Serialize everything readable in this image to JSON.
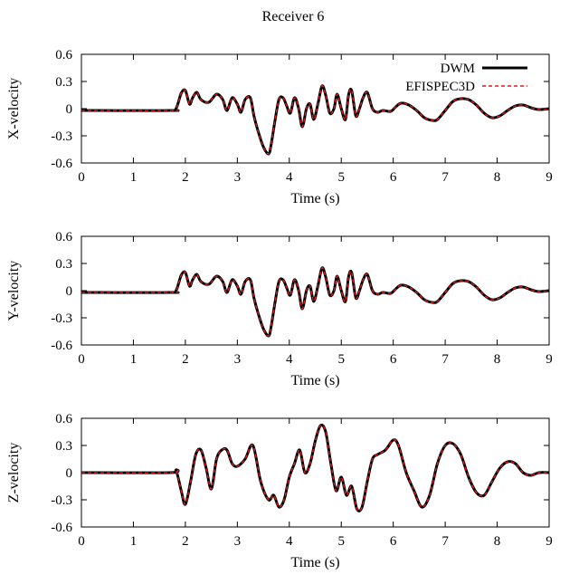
{
  "figure": {
    "title": "Receiver 6"
  },
  "legend": [
    {
      "name": "DWM",
      "color": "#000000",
      "style": "solid"
    },
    {
      "name": "EFISPEC3D",
      "color": "#e31a1c",
      "style": "dashed"
    }
  ],
  "chart_data": [
    {
      "type": "line",
      "title": "",
      "xlabel": "Time (s)",
      "ylabel": "X-velocity",
      "xlim": [
        0,
        9
      ],
      "ylim": [
        -0.6,
        0.6
      ],
      "xticks": [
        "0",
        "1",
        "2",
        "3",
        "4",
        "5",
        "6",
        "7",
        "8",
        "9"
      ],
      "yticks": [
        "0.6",
        "0.3",
        "0",
        "-0.3",
        "-0.6"
      ],
      "legend_position": "top-right",
      "series": [
        {
          "name": "DWM",
          "color": "#000000",
          "x": [
            0,
            1.7,
            1.82,
            1.92,
            2.0,
            2.08,
            2.14,
            2.22,
            2.3,
            2.45,
            2.6,
            2.72,
            2.8,
            2.9,
            3.0,
            3.07,
            3.15,
            3.25,
            3.32,
            3.4,
            3.5,
            3.6,
            3.65,
            3.72,
            3.8,
            3.88,
            3.95,
            4.02,
            4.1,
            4.18,
            4.25,
            4.33,
            4.4,
            4.47,
            4.55,
            4.63,
            4.7,
            4.78,
            4.86,
            4.92,
            5.0,
            5.08,
            5.14,
            5.2,
            5.28,
            5.35,
            5.42,
            5.5,
            5.6,
            5.7,
            5.8,
            5.95,
            6.05,
            6.15,
            6.3,
            6.45,
            6.6,
            6.75,
            6.85,
            7.0,
            7.15,
            7.3,
            7.45,
            7.6,
            7.75,
            7.9,
            8.05,
            8.2,
            8.35,
            8.5,
            8.65,
            8.8,
            9.0
          ],
          "y": [
            -0.02,
            -0.02,
            0.0,
            0.17,
            0.2,
            0.05,
            0.12,
            0.18,
            0.1,
            0.07,
            0.16,
            0.1,
            -0.02,
            0.12,
            0.05,
            -0.04,
            0.1,
            0.12,
            -0.08,
            -0.25,
            -0.42,
            -0.5,
            -0.4,
            -0.15,
            0.1,
            0.12,
            0.03,
            -0.05,
            0.12,
            0.0,
            -0.2,
            0.0,
            0.05,
            -0.12,
            0.05,
            0.25,
            0.15,
            -0.05,
            0.0,
            0.16,
            0.0,
            -0.12,
            0.15,
            0.2,
            -0.08,
            0.0,
            0.12,
            0.18,
            0.0,
            -0.04,
            -0.02,
            -0.03,
            0.02,
            0.06,
            0.04,
            -0.02,
            -0.1,
            -0.13,
            -0.12,
            -0.02,
            0.08,
            0.11,
            0.1,
            0.04,
            -0.05,
            -0.1,
            -0.08,
            -0.02,
            0.03,
            0.04,
            0.01,
            -0.01,
            0.0
          ]
        },
        {
          "name": "EFISPEC3D",
          "color": "#e31a1c",
          "x": [
            0,
            1.7,
            1.82,
            1.92,
            2.0,
            2.08,
            2.14,
            2.22,
            2.3,
            2.45,
            2.6,
            2.72,
            2.8,
            2.9,
            3.0,
            3.07,
            3.15,
            3.25,
            3.32,
            3.4,
            3.5,
            3.6,
            3.65,
            3.72,
            3.8,
            3.88,
            3.95,
            4.02,
            4.1,
            4.18,
            4.25,
            4.33,
            4.4,
            4.47,
            4.55,
            4.63,
            4.7,
            4.78,
            4.86,
            4.92,
            5.0,
            5.08,
            5.14,
            5.2,
            5.28,
            5.35,
            5.42,
            5.5,
            5.6,
            5.7,
            5.8,
            5.95,
            6.05,
            6.15,
            6.3,
            6.45,
            6.6,
            6.75,
            6.85,
            7.0,
            7.15,
            7.3,
            7.45,
            7.6,
            7.75,
            7.9,
            8.05,
            8.2,
            8.35,
            8.5,
            8.65,
            8.8,
            9.0
          ],
          "y": [
            -0.02,
            -0.02,
            0.0,
            0.17,
            0.2,
            0.05,
            0.12,
            0.18,
            0.1,
            0.07,
            0.16,
            0.1,
            -0.02,
            0.12,
            0.05,
            -0.04,
            0.1,
            0.12,
            -0.08,
            -0.25,
            -0.42,
            -0.5,
            -0.4,
            -0.15,
            0.1,
            0.12,
            0.03,
            -0.05,
            0.12,
            0.0,
            -0.2,
            0.0,
            0.05,
            -0.12,
            0.05,
            0.25,
            0.15,
            -0.05,
            0.0,
            0.16,
            0.0,
            -0.12,
            0.15,
            0.2,
            -0.08,
            0.0,
            0.12,
            0.18,
            0.0,
            -0.04,
            -0.02,
            -0.03,
            0.02,
            0.06,
            0.04,
            -0.02,
            -0.1,
            -0.13,
            -0.12,
            -0.02,
            0.08,
            0.11,
            0.1,
            0.04,
            -0.05,
            -0.1,
            -0.08,
            -0.02,
            0.03,
            0.04,
            0.01,
            -0.01,
            0.0
          ]
        }
      ]
    },
    {
      "type": "line",
      "title": "",
      "xlabel": "Time (s)",
      "ylabel": "Y-velocity",
      "xlim": [
        0,
        9
      ],
      "ylim": [
        -0.6,
        0.6
      ],
      "xticks": [
        "0",
        "1",
        "2",
        "3",
        "4",
        "5",
        "6",
        "7",
        "8",
        "9"
      ],
      "yticks": [
        "0.6",
        "0.3",
        "0",
        "-0.3",
        "-0.6"
      ],
      "series": [
        {
          "name": "DWM",
          "color": "#000000",
          "x": [
            0,
            1.7,
            1.82,
            1.92,
            2.0,
            2.08,
            2.14,
            2.22,
            2.3,
            2.45,
            2.6,
            2.72,
            2.8,
            2.9,
            3.0,
            3.07,
            3.15,
            3.25,
            3.32,
            3.4,
            3.5,
            3.6,
            3.65,
            3.72,
            3.8,
            3.88,
            3.95,
            4.02,
            4.1,
            4.18,
            4.25,
            4.33,
            4.4,
            4.47,
            4.55,
            4.63,
            4.7,
            4.78,
            4.86,
            4.92,
            5.0,
            5.08,
            5.14,
            5.2,
            5.28,
            5.35,
            5.42,
            5.5,
            5.6,
            5.7,
            5.8,
            5.95,
            6.05,
            6.15,
            6.3,
            6.45,
            6.6,
            6.75,
            6.85,
            7.0,
            7.15,
            7.3,
            7.45,
            7.6,
            7.75,
            7.9,
            8.05,
            8.2,
            8.35,
            8.5,
            8.65,
            8.8,
            9.0
          ],
          "y": [
            -0.02,
            -0.02,
            0.0,
            0.17,
            0.2,
            0.05,
            0.12,
            0.18,
            0.1,
            0.07,
            0.16,
            0.1,
            -0.02,
            0.12,
            0.05,
            -0.04,
            0.1,
            0.12,
            -0.08,
            -0.25,
            -0.42,
            -0.5,
            -0.4,
            -0.15,
            0.1,
            0.12,
            0.03,
            -0.05,
            0.12,
            0.0,
            -0.2,
            0.0,
            0.05,
            -0.12,
            0.05,
            0.25,
            0.15,
            -0.05,
            0.0,
            0.16,
            0.0,
            -0.12,
            0.15,
            0.2,
            -0.08,
            0.0,
            0.12,
            0.18,
            0.0,
            -0.04,
            -0.02,
            -0.03,
            0.02,
            0.06,
            0.04,
            -0.02,
            -0.1,
            -0.13,
            -0.12,
            -0.02,
            0.08,
            0.11,
            0.1,
            0.04,
            -0.05,
            -0.1,
            -0.08,
            -0.02,
            0.03,
            0.04,
            0.01,
            -0.01,
            0.0
          ]
        },
        {
          "name": "EFISPEC3D",
          "color": "#e31a1c",
          "x": [
            0,
            1.7,
            1.82,
            1.92,
            2.0,
            2.08,
            2.14,
            2.22,
            2.3,
            2.45,
            2.6,
            2.72,
            2.8,
            2.9,
            3.0,
            3.07,
            3.15,
            3.25,
            3.32,
            3.4,
            3.5,
            3.6,
            3.65,
            3.72,
            3.8,
            3.88,
            3.95,
            4.02,
            4.1,
            4.18,
            4.25,
            4.33,
            4.4,
            4.47,
            4.55,
            4.63,
            4.7,
            4.78,
            4.86,
            4.92,
            5.0,
            5.08,
            5.14,
            5.2,
            5.28,
            5.35,
            5.42,
            5.5,
            5.6,
            5.7,
            5.8,
            5.95,
            6.05,
            6.15,
            6.3,
            6.45,
            6.6,
            6.75,
            6.85,
            7.0,
            7.15,
            7.3,
            7.45,
            7.6,
            7.75,
            7.9,
            8.05,
            8.2,
            8.35,
            8.5,
            8.65,
            8.8,
            9.0
          ],
          "y": [
            -0.02,
            -0.02,
            0.0,
            0.17,
            0.2,
            0.05,
            0.12,
            0.18,
            0.1,
            0.07,
            0.16,
            0.1,
            -0.02,
            0.12,
            0.05,
            -0.04,
            0.1,
            0.12,
            -0.08,
            -0.25,
            -0.42,
            -0.5,
            -0.4,
            -0.15,
            0.1,
            0.12,
            0.03,
            -0.05,
            0.12,
            0.0,
            -0.2,
            0.0,
            0.05,
            -0.12,
            0.05,
            0.25,
            0.15,
            -0.05,
            0.0,
            0.16,
            0.0,
            -0.12,
            0.15,
            0.2,
            -0.08,
            0.0,
            0.12,
            0.18,
            0.0,
            -0.04,
            -0.02,
            -0.03,
            0.02,
            0.06,
            0.04,
            -0.02,
            -0.1,
            -0.13,
            -0.12,
            -0.02,
            0.08,
            0.11,
            0.1,
            0.04,
            -0.05,
            -0.1,
            -0.08,
            -0.02,
            0.03,
            0.04,
            0.01,
            -0.01,
            0.0
          ]
        }
      ]
    },
    {
      "type": "line",
      "title": "",
      "xlabel": "Time (s)",
      "ylabel": "Z-velocity",
      "xlim": [
        0,
        9
      ],
      "ylim": [
        -0.6,
        0.6
      ],
      "xticks": [
        "0",
        "1",
        "2",
        "3",
        "4",
        "5",
        "6",
        "7",
        "8",
        "9"
      ],
      "yticks": [
        "0.6",
        "0.3",
        "0",
        "-0.3",
        "-0.6"
      ],
      "series": [
        {
          "name": "DWM",
          "color": "#000000",
          "x": [
            0,
            1.7,
            1.82,
            1.92,
            2.0,
            2.1,
            2.2,
            2.3,
            2.4,
            2.5,
            2.6,
            2.7,
            2.8,
            2.9,
            3.0,
            3.15,
            3.3,
            3.45,
            3.6,
            3.7,
            3.8,
            3.9,
            4.0,
            4.1,
            4.2,
            4.3,
            4.4,
            4.5,
            4.6,
            4.7,
            4.8,
            4.9,
            5.0,
            5.1,
            5.2,
            5.3,
            5.4,
            5.5,
            5.6,
            5.7,
            5.85,
            6.0,
            6.1,
            6.25,
            6.4,
            6.55,
            6.7,
            6.85,
            7.0,
            7.15,
            7.3,
            7.45,
            7.6,
            7.75,
            7.9,
            8.05,
            8.2,
            8.35,
            8.5,
            8.65,
            8.8,
            9.0
          ],
          "y": [
            0.0,
            0.0,
            0.02,
            -0.2,
            -0.35,
            -0.1,
            0.2,
            0.25,
            0.05,
            -0.18,
            0.15,
            0.25,
            0.25,
            0.1,
            0.07,
            0.15,
            0.3,
            -0.1,
            -0.3,
            -0.25,
            -0.38,
            -0.3,
            -0.05,
            0.1,
            0.25,
            0.0,
            0.1,
            0.35,
            0.52,
            0.45,
            0.1,
            -0.2,
            -0.05,
            -0.25,
            -0.15,
            -0.4,
            -0.38,
            -0.1,
            0.15,
            0.2,
            0.25,
            0.36,
            0.3,
            0.0,
            -0.2,
            -0.38,
            -0.25,
            0.1,
            0.3,
            0.32,
            0.2,
            -0.05,
            -0.22,
            -0.25,
            -0.1,
            0.05,
            0.12,
            0.1,
            0.0,
            -0.03,
            0.0,
            0.0
          ]
        },
        {
          "name": "EFISPEC3D",
          "color": "#e31a1c",
          "x": [
            0,
            1.7,
            1.82,
            1.92,
            2.0,
            2.1,
            2.2,
            2.3,
            2.4,
            2.5,
            2.6,
            2.7,
            2.8,
            2.9,
            3.0,
            3.15,
            3.3,
            3.45,
            3.6,
            3.7,
            3.8,
            3.9,
            4.0,
            4.1,
            4.2,
            4.3,
            4.4,
            4.5,
            4.6,
            4.7,
            4.8,
            4.9,
            5.0,
            5.1,
            5.2,
            5.3,
            5.4,
            5.5,
            5.6,
            5.7,
            5.85,
            6.0,
            6.1,
            6.25,
            6.4,
            6.55,
            6.7,
            6.85,
            7.0,
            7.15,
            7.3,
            7.45,
            7.6,
            7.75,
            7.9,
            8.05,
            8.2,
            8.35,
            8.5,
            8.65,
            8.8,
            9.0
          ],
          "y": [
            0.0,
            0.0,
            0.02,
            -0.2,
            -0.35,
            -0.1,
            0.2,
            0.25,
            0.05,
            -0.18,
            0.15,
            0.25,
            0.25,
            0.1,
            0.07,
            0.15,
            0.3,
            -0.1,
            -0.3,
            -0.25,
            -0.38,
            -0.3,
            -0.05,
            0.1,
            0.25,
            0.0,
            0.1,
            0.35,
            0.52,
            0.45,
            0.1,
            -0.2,
            -0.05,
            -0.25,
            -0.15,
            -0.4,
            -0.38,
            -0.1,
            0.15,
            0.2,
            0.25,
            0.36,
            0.3,
            0.0,
            -0.2,
            -0.38,
            -0.25,
            0.1,
            0.3,
            0.32,
            0.2,
            -0.05,
            -0.22,
            -0.25,
            -0.1,
            0.05,
            0.12,
            0.1,
            0.0,
            -0.03,
            0.0,
            0.0
          ]
        }
      ]
    }
  ]
}
